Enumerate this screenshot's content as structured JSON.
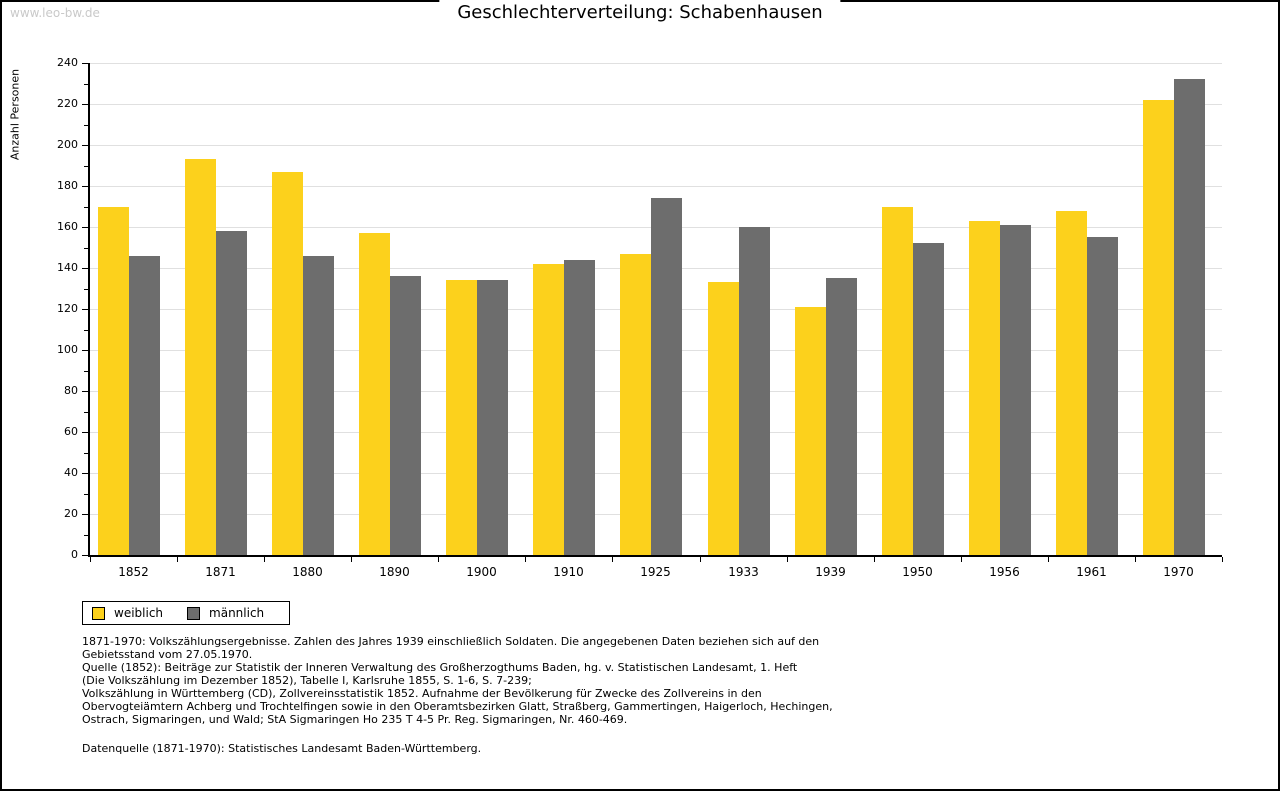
{
  "watermark": "www.leo-bw.de",
  "title": "Geschlechterverteilung: Schabenhausen",
  "chart_data": {
    "type": "bar",
    "title": "Geschlechterverteilung: Schabenhausen",
    "xlabel": "",
    "ylabel": "Anzahl Personen",
    "ylim": [
      0,
      240
    ],
    "ytick_step": 20,
    "yminor_step": 10,
    "grid": true,
    "legend_position": "bottom-left",
    "categories": [
      "1852",
      "1871",
      "1880",
      "1890",
      "1900",
      "1910",
      "1925",
      "1933",
      "1939",
      "1950",
      "1956",
      "1961",
      "1970"
    ],
    "series": [
      {
        "name": "weiblich",
        "color": "#FCD11C",
        "values": [
          170,
          193,
          187,
          157,
          134,
          142,
          147,
          133,
          121,
          170,
          163,
          168,
          222
        ]
      },
      {
        "name": "männlich",
        "color": "#6D6D6D",
        "values": [
          146,
          158,
          146,
          136,
          134,
          144,
          174,
          160,
          135,
          152,
          161,
          155,
          232
        ]
      }
    ],
    "colors": {
      "gridline": "#e0e0e0",
      "axis": "#000000"
    }
  },
  "footnotes": [
    "1871-1970: Volkszählungsergebnisse. Zahlen des Jahres 1939 einschließlich Soldaten. Die angegebenen Daten beziehen sich auf den",
    "Gebietsstand vom 27.05.1970.",
    "Quelle (1852): Beiträge zur Statistik der Inneren Verwaltung des Großherzogthums Baden, hg. v. Statistischen Landesamt, 1. Heft",
    "(Die Volkszählung im Dezember 1852), Tabelle I, Karlsruhe 1855, S. 1-6, S. 7-239;",
    "Volkszählung in Württemberg (CD), Zollvereinsstatistik 1852. Aufnahme der Bevölkerung für Zwecke des Zollvereins in den",
    "Obervogteiämtern Achberg und Trochtelfingen sowie in den Oberamtsbezirken Glatt, Straßberg, Gammertingen, Haigerloch, Hechingen,",
    "Ostrach, Sigmaringen, und Wald; StA Sigmaringen Ho 235 T 4-5 Pr. Reg. Sigmaringen, Nr. 460-469."
  ],
  "datasource": "Datenquelle (1871-1970): Statistisches Landesamt Baden-Württemberg."
}
